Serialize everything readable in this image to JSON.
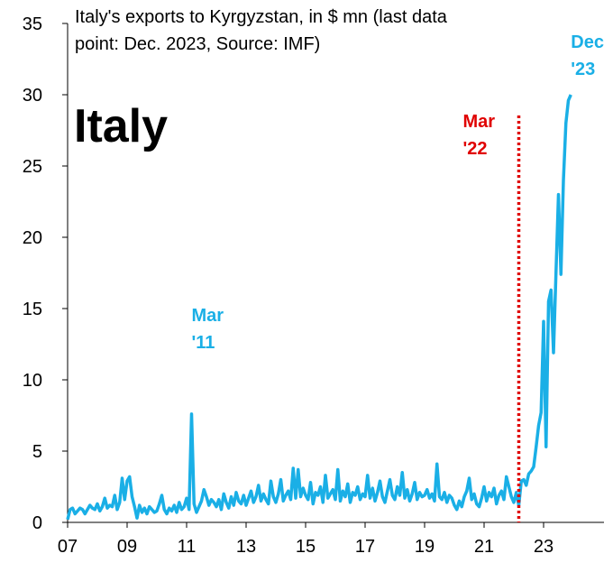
{
  "chart_data": {
    "type": "line",
    "title": "Italy's exports to Kyrgyzstan, in $ mn (last data point: Dec. 2023, Source: IMF)",
    "categories": [
      "07",
      null,
      null,
      null,
      null,
      null,
      null,
      null,
      null,
      null,
      null,
      null,
      null,
      null,
      null,
      null,
      null,
      null,
      null,
      null,
      null,
      null,
      null,
      null,
      "09",
      null,
      null,
      null,
      null,
      null,
      null,
      null,
      null,
      null,
      null,
      null,
      null,
      null,
      null,
      null,
      null,
      null,
      null,
      null,
      null,
      null,
      null,
      null,
      "11",
      null,
      null,
      null,
      null,
      null,
      null,
      null,
      null,
      null,
      null,
      null,
      null,
      null,
      null,
      null,
      null,
      null,
      null,
      null,
      null,
      null,
      null,
      null,
      "13",
      null,
      null,
      null,
      null,
      null,
      null,
      null,
      null,
      null,
      null,
      null,
      null,
      null,
      null,
      null,
      null,
      null,
      null,
      null,
      null,
      null,
      null,
      null,
      "15",
      null,
      null,
      null,
      null,
      null,
      null,
      null,
      null,
      null,
      null,
      null,
      null,
      null,
      null,
      null,
      null,
      null,
      null,
      null,
      null,
      null,
      null,
      null,
      "17",
      null,
      null,
      null,
      null,
      null,
      null,
      null,
      null,
      null,
      null,
      null,
      null,
      null,
      null,
      null,
      null,
      null,
      null,
      null,
      null,
      null,
      null,
      null,
      "19",
      null,
      null,
      null,
      null,
      null,
      null,
      null,
      null,
      null,
      null,
      null,
      null,
      null,
      null,
      null,
      null,
      null,
      null,
      null,
      null,
      null,
      null,
      null,
      "21",
      null,
      null,
      null,
      null,
      null,
      null,
      null,
      null,
      null,
      null,
      null,
      null,
      null,
      null,
      null,
      null,
      null,
      null,
      null,
      null,
      null,
      null,
      null,
      "23",
      null,
      null,
      null,
      null,
      null,
      null,
      null,
      null,
      null,
      null,
      null
    ],
    "series": [
      {
        "name": "Italy",
        "color": "#1aafe6",
        "values": [
          0.2,
          0.9,
          1.0,
          0.6,
          0.8,
          1.0,
          0.9,
          0.6,
          0.9,
          1.2,
          1.0,
          0.9,
          1.3,
          0.8,
          1.1,
          1.7,
          1.0,
          1.2,
          1.1,
          1.9,
          0.9,
          1.4,
          3.1,
          1.6,
          2.9,
          3.2,
          1.8,
          1.1,
          0.3,
          1.2,
          0.7,
          1.0,
          0.6,
          1.1,
          0.9,
          0.7,
          0.8,
          1.3,
          1.9,
          0.9,
          0.6,
          1.0,
          0.8,
          1.2,
          0.7,
          1.4,
          0.9,
          1.1,
          1.7,
          0.9,
          7.6,
          1.3,
          0.7,
          1.1,
          1.5,
          2.3,
          1.8,
          1.2,
          1.6,
          1.4,
          1.1,
          1.6,
          0.9,
          2.0,
          1.4,
          1.0,
          1.8,
          1.2,
          2.1,
          1.5,
          1.3,
          1.9,
          1.2,
          1.7,
          2.2,
          1.4,
          1.8,
          2.6,
          1.5,
          2.0,
          1.6,
          1.3,
          2.9,
          1.8,
          1.4,
          2.0,
          3.0,
          1.5,
          1.9,
          2.2,
          1.6,
          3.8,
          1.7,
          3.7,
          1.8,
          2.4,
          1.9,
          1.6,
          2.8,
          1.3,
          2.1,
          1.9,
          2.5,
          1.4,
          3.3,
          1.7,
          2.0,
          2.3,
          1.6,
          3.7,
          1.5,
          2.2,
          1.8,
          2.7,
          1.4,
          2.1,
          1.9,
          2.5,
          1.6,
          2.0,
          1.8,
          3.3,
          1.7,
          2.4,
          1.5,
          2.1,
          2.9,
          1.8,
          1.4,
          2.2,
          3.0,
          1.9,
          1.6,
          2.5,
          1.9,
          3.5,
          1.7,
          2.3,
          1.5,
          2.0,
          2.8,
          1.6,
          2.1,
          1.8,
          1.9,
          2.3,
          1.7,
          2.0,
          1.5,
          4.1,
          1.8,
          1.6,
          2.1,
          1.4,
          1.9,
          1.7,
          1.2,
          0.9,
          1.5,
          1.1,
          1.8,
          2.2,
          3.1,
          1.6,
          2.0,
          1.3,
          1.1,
          1.7,
          2.5,
          1.5,
          2.1,
          1.8,
          2.4,
          1.3,
          1.9,
          2.2,
          1.6,
          3.2,
          2.5,
          1.8,
          1.4,
          2.1,
          1.2,
          2.9,
          3.0,
          2.6,
          3.4,
          3.6,
          3.9,
          5.3,
          6.8,
          7.7,
          14.1,
          5.3,
          15.5,
          16.3,
          11.9,
          17.5,
          23.0,
          17.4,
          24.0,
          28.0,
          29.6,
          30.0
        ]
      }
    ],
    "ylim": [
      0,
      35
    ],
    "yticks": [
      0,
      5,
      10,
      15,
      20,
      25,
      30,
      35
    ],
    "annotations": [
      {
        "text": "Italy",
        "color": "#000000"
      },
      {
        "text": "Mar '11",
        "color": "#1aafe6",
        "index": 50
      },
      {
        "text": "Mar '22",
        "color": "#e00000",
        "index": 182,
        "vline": true
      },
      {
        "text": "Dec '23",
        "color": "#1aafe6",
        "index": 203
      }
    ]
  }
}
